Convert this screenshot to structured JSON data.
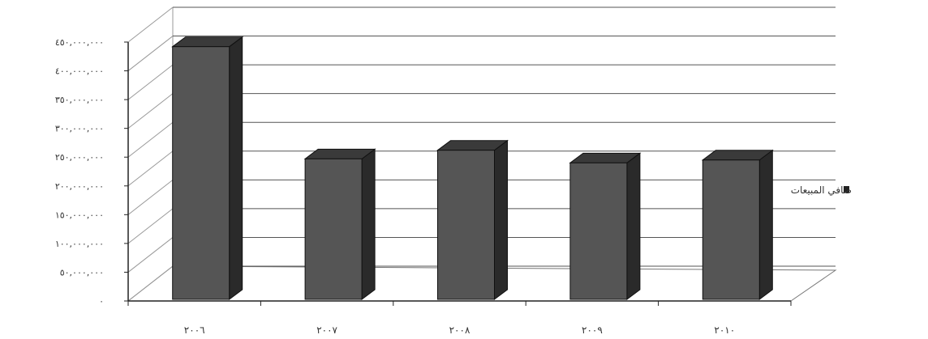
{
  "chart_data": {
    "type": "bar",
    "categories": [
      "٢٠٠٦",
      "٢٠٠٧",
      "٢٠٠٨",
      "٢٠٠٩",
      "٢٠١٠"
    ],
    "series": [
      {
        "name": "صافي المبيعات",
        "values": [
          442000000,
          247000000,
          262000000,
          240000000,
          245000000
        ]
      }
    ],
    "yticks": [
      0,
      50000000,
      100000000,
      150000000,
      200000000,
      250000000,
      300000000,
      350000000,
      400000000,
      450000000
    ],
    "ytick_labels": [
      "٠",
      "٥٠,٠٠٠,٠٠٠",
      "١٠٠,٠٠٠,٠٠٠",
      "١٥٠,٠٠٠,٠٠٠",
      "٢٠٠,٠٠٠,٠٠٠",
      "٢٥٠,٠٠٠,٠٠٠",
      "٣٠٠,٠٠٠,٠٠٠",
      "٣٥٠,٠٠٠,٠٠٠",
      "٤٠٠,٠٠٠,٠٠٠",
      "٤٥٠,٠٠٠,٠٠٠"
    ],
    "ylim": [
      0,
      450000000
    ],
    "grid": true,
    "three_d": true,
    "legend_position": "right",
    "bar_color": "#555555"
  }
}
